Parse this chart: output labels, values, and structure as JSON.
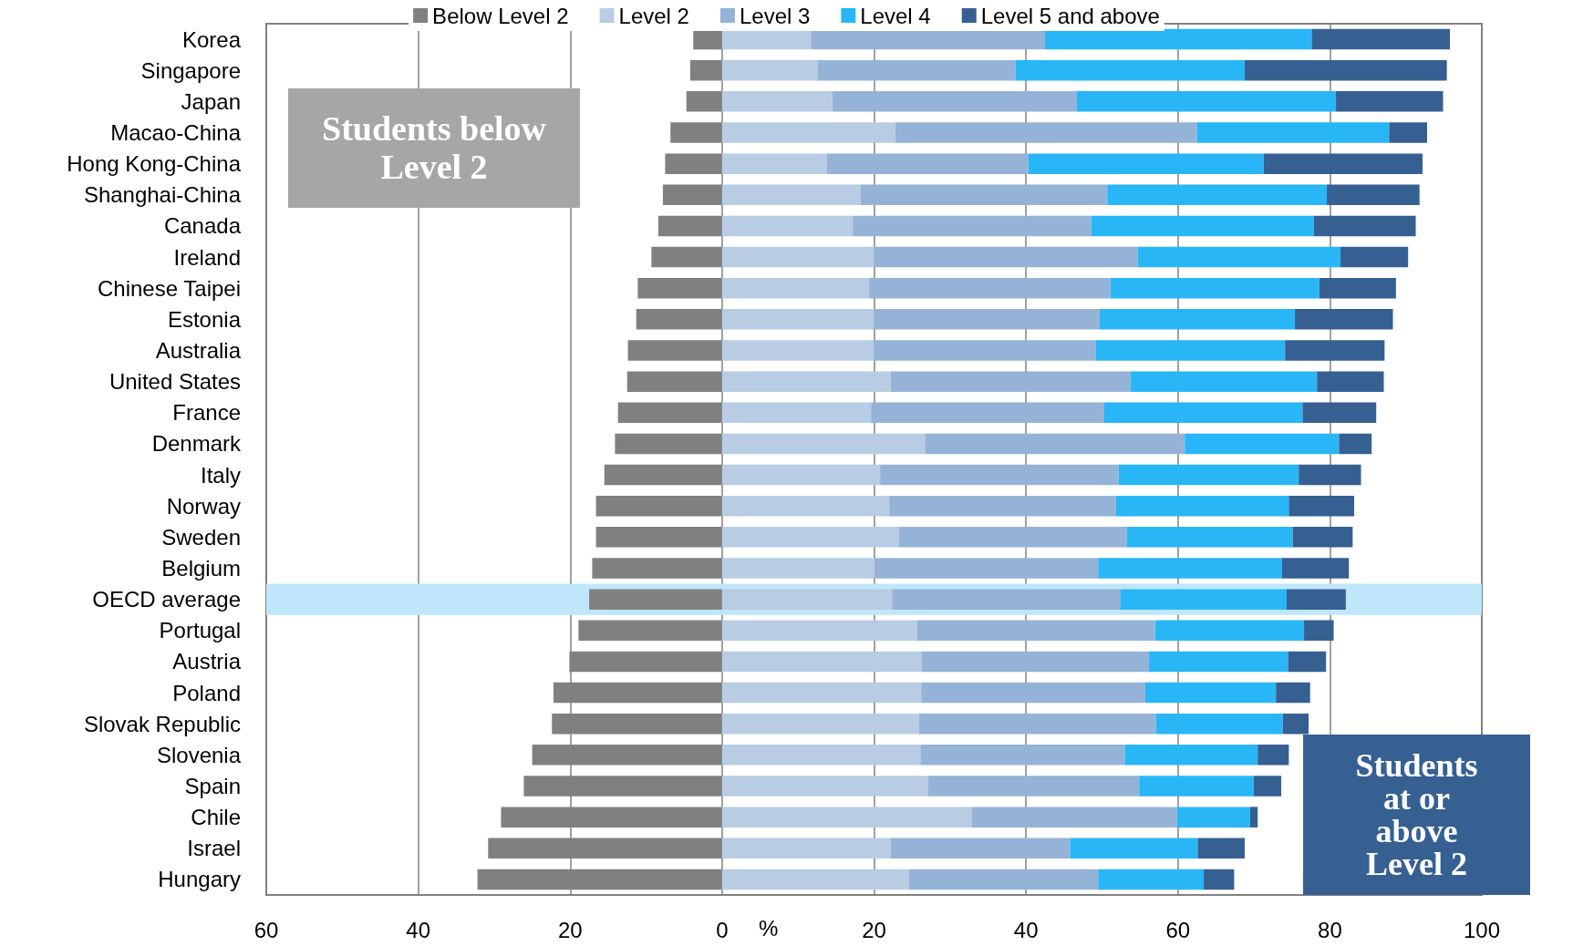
{
  "chart_data": {
    "type": "bar",
    "orientation": "horizontal",
    "stacked": true,
    "grid": "x",
    "legend": "top",
    "xlabel": "%",
    "categories": [
      "Korea",
      "Singapore",
      "Japan",
      "Macao-China",
      "Hong Kong-China",
      "Shanghai-China",
      "Canada",
      "Ireland",
      "Chinese Taipei",
      "Estonia",
      "Australia",
      "United States",
      "France",
      "Denmark",
      "Italy",
      "Norway",
      "Sweden",
      "Belgium",
      "OECD average",
      "Portugal",
      "Austria",
      "Poland",
      "Slovak Republic",
      "Slovenia",
      "Spain",
      "Chile",
      "Israel",
      "Hungary"
    ],
    "xlim": [
      -60,
      100
    ],
    "xticks": [
      {
        "value": -60,
        "label": "60"
      },
      {
        "value": -40,
        "label": "40"
      },
      {
        "value": -20,
        "label": "20"
      },
      0,
      20,
      40,
      60,
      80,
      100
    ],
    "series": [
      {
        "name": "Below Level 2",
        "color": "#808080",
        "values": [
          -3.8,
          -4.2,
          -4.7,
          -6.8,
          -7.5,
          -7.8,
          -8.4,
          -9.3,
          -11.1,
          -11.3,
          -12.4,
          -12.5,
          -13.7,
          -14.1,
          -15.5,
          -16.6,
          -16.6,
          -17.1,
          -17.5,
          -18.9,
          -20.1,
          -22.2,
          -22.4,
          -25.0,
          -26.1,
          -29.1,
          -30.8,
          -32.2
        ]
      },
      {
        "name": "Level 2",
        "color": "#b8cce4",
        "values": [
          11.7,
          12.6,
          14.5,
          22.8,
          13.8,
          18.2,
          17.2,
          19.9,
          19.3,
          19.9,
          19.9,
          22.2,
          19.6,
          26.7,
          20.8,
          22.0,
          23.3,
          20.1,
          22.4,
          25.7,
          26.3,
          26.2,
          25.9,
          26.1,
          27.1,
          32.9,
          22.2,
          24.6
        ]
      },
      {
        "name": "Level 3",
        "color": "#95b3d7",
        "values": [
          30.8,
          26.0,
          32.2,
          39.7,
          26.5,
          32.5,
          31.4,
          34.8,
          31.8,
          29.8,
          29.3,
          31.6,
          30.7,
          34.2,
          31.4,
          29.8,
          30.0,
          29.4,
          30.0,
          31.3,
          29.9,
          29.5,
          31.2,
          26.9,
          27.8,
          27.0,
          23.6,
          24.9
        ]
      },
      {
        "name": "Level 4",
        "color": "#29b6f6",
        "values": [
          35.1,
          30.2,
          34.1,
          25.3,
          31.0,
          28.9,
          29.3,
          26.7,
          27.5,
          25.7,
          24.9,
          24.5,
          26.1,
          20.3,
          23.7,
          22.8,
          21.8,
          24.2,
          21.9,
          19.6,
          18.3,
          17.2,
          16.7,
          17.5,
          15.1,
          9.6,
          16.8,
          13.9
        ]
      },
      {
        "name": "Level 5 and above",
        "color": "#366092",
        "values": [
          18.2,
          26.6,
          14.1,
          5.0,
          20.9,
          12.2,
          13.4,
          8.9,
          10.1,
          12.9,
          13.1,
          8.8,
          9.7,
          4.3,
          8.2,
          8.6,
          7.9,
          8.8,
          7.8,
          3.9,
          5.0,
          4.5,
          3.4,
          4.1,
          3.6,
          1.0,
          6.2,
          4.0
        ]
      }
    ],
    "bands": [
      {
        "axis": "y",
        "from": "OECD average",
        "to": "OECD average",
        "color": "#bfe6fb"
      }
    ],
    "annotations": [
      "Students below Level 2",
      "Students at or above Level 2"
    ]
  }
}
